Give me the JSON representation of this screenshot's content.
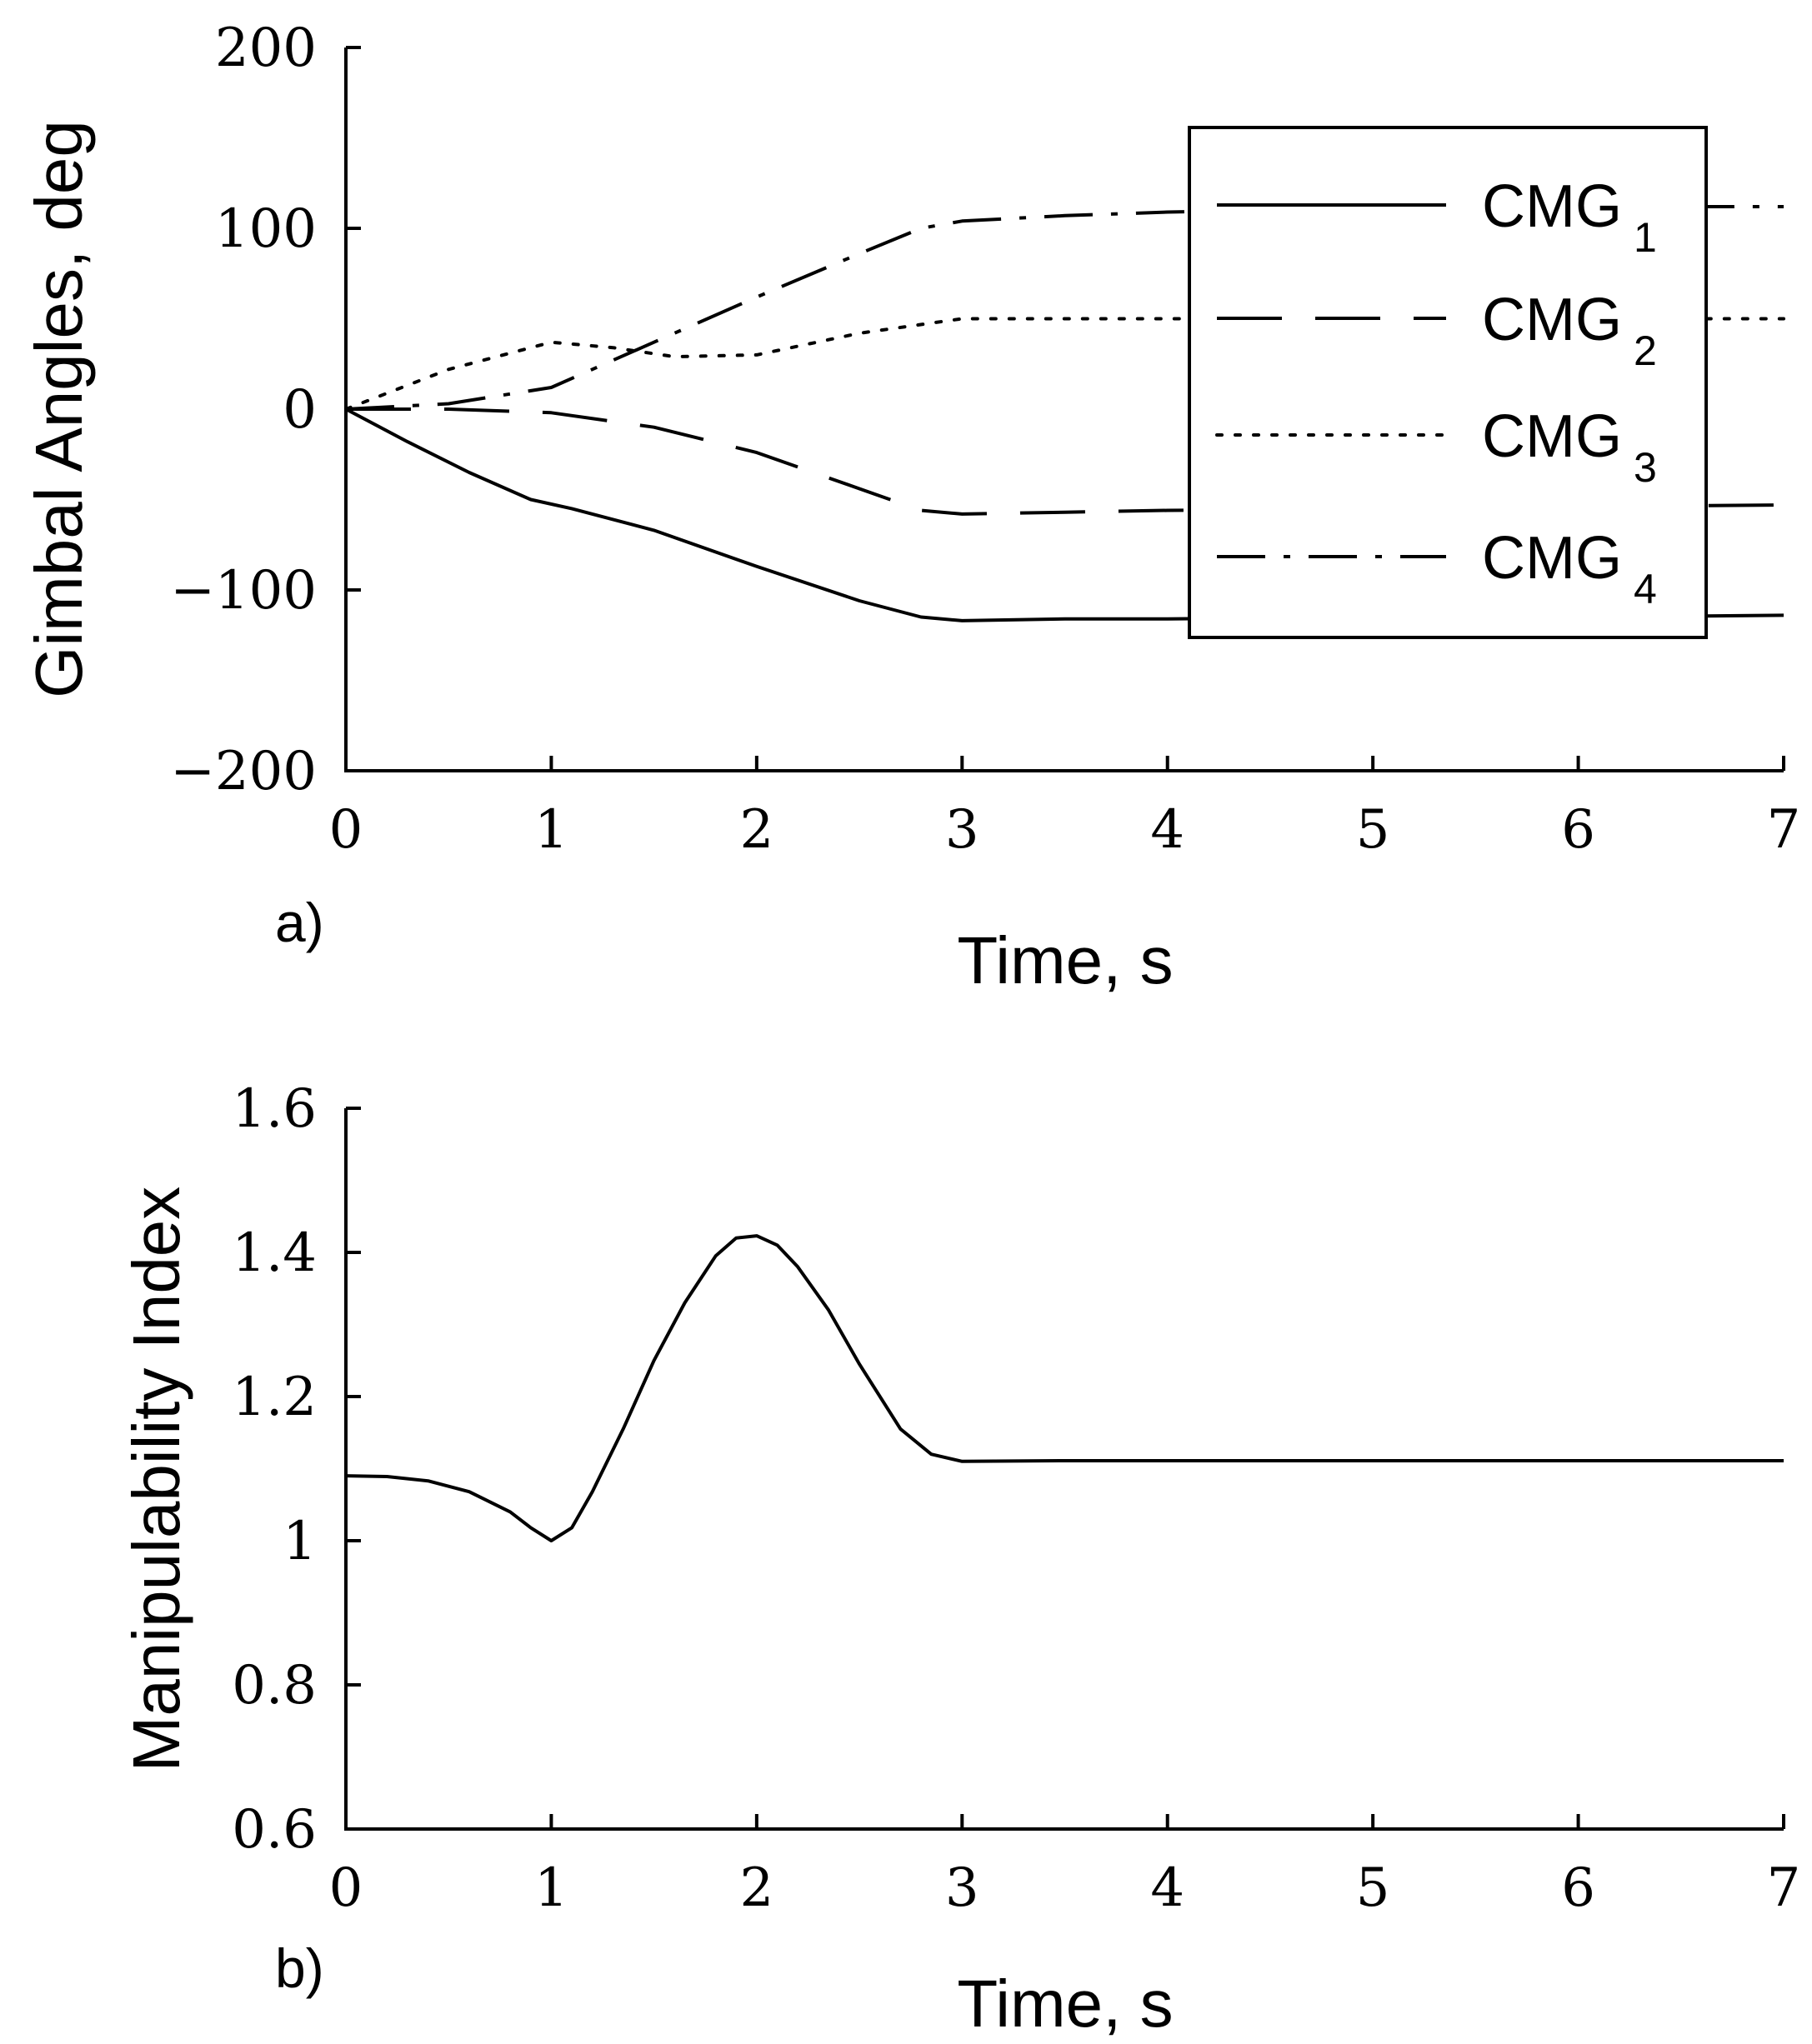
{
  "chart_data": [
    {
      "type": "line",
      "panel_label": "a)",
      "xlabel": "Time, s",
      "ylabel": "Gimbal Angles, deg",
      "xlim": [
        0,
        7
      ],
      "ylim": [
        -200,
        200
      ],
      "xticks": [
        0,
        1,
        2,
        3,
        4,
        5,
        6,
        7
      ],
      "yticks": [
        -200,
        -100,
        0,
        100,
        200
      ],
      "ytick_labels": [
        "−200",
        "−100",
        "0",
        "100",
        "200"
      ],
      "legend_position": "top-right",
      "series": [
        {
          "name": "CMG",
          "subscript": "1",
          "style": "solid",
          "x": [
            0,
            0.3,
            0.6,
            0.9,
            1.1,
            1.5,
            2.0,
            2.5,
            2.8,
            3.0,
            3.5,
            4.0,
            4.5,
            5.0,
            5.5,
            6.0,
            6.5,
            7.0
          ],
          "y": [
            0,
            -18,
            -35,
            -50,
            -55,
            -67,
            -87,
            -106,
            -115,
            -117,
            -116,
            -116,
            -115.5,
            -115.5,
            -115,
            -115,
            -114.5,
            -114
          ]
        },
        {
          "name": "CMG",
          "subscript": "2",
          "style": "dashed",
          "x": [
            0,
            0.5,
            1.0,
            1.5,
            2.0,
            2.5,
            2.8,
            3.0,
            3.5,
            4.0,
            4.5,
            5.0,
            5.5,
            6.0,
            6.5,
            7.0
          ],
          "y": [
            0,
            0,
            -2,
            -10,
            -24,
            -44,
            -56,
            -58,
            -57,
            -56,
            -55.5,
            -55,
            -54.5,
            -54,
            -53.5,
            -53
          ]
        },
        {
          "name": "CMG",
          "subscript": "3",
          "style": "dotted",
          "x": [
            0,
            0.5,
            1.0,
            1.3,
            1.6,
            2.0,
            2.5,
            3.0,
            3.5,
            4.0,
            4.5,
            5.0,
            5.5,
            6.0,
            6.5,
            7.0
          ],
          "y": [
            0,
            22,
            37,
            34,
            29,
            30,
            42,
            50,
            50,
            50,
            50,
            50,
            50,
            50,
            50,
            50
          ]
        },
        {
          "name": "CMG",
          "subscript": "4",
          "style": "dashdot",
          "x": [
            0,
            0.5,
            1.0,
            1.5,
            2.0,
            2.5,
            2.8,
            3.0,
            3.5,
            4.0,
            4.5,
            5.0,
            5.5,
            6.0,
            6.5,
            7.0
          ],
          "y": [
            0,
            3,
            12,
            37,
            62,
            86,
            100,
            104,
            107,
            109,
            110,
            110.5,
            111,
            111.5,
            112,
            112
          ]
        }
      ]
    },
    {
      "type": "line",
      "panel_label": "b)",
      "xlabel": "Time, s",
      "ylabel": "Manipulability Index",
      "xlim": [
        0,
        7
      ],
      "ylim": [
        0.6,
        1.6
      ],
      "xticks": [
        0,
        1,
        2,
        3,
        4,
        5,
        6,
        7
      ],
      "yticks": [
        0.6,
        0.8,
        1.0,
        1.2,
        1.4,
        1.6
      ],
      "ytick_labels": [
        "0.6",
        "0.8",
        "1",
        "1.2",
        "1.4",
        "1.6"
      ],
      "series": [
        {
          "name": "Manipulability Index",
          "style": "solid",
          "x": [
            0,
            0.2,
            0.4,
            0.6,
            0.8,
            0.9,
            1.0,
            1.1,
            1.2,
            1.35,
            1.5,
            1.65,
            1.8,
            1.9,
            2.0,
            2.1,
            2.2,
            2.35,
            2.5,
            2.7,
            2.85,
            3.0,
            3.5,
            4.0,
            5.0,
            6.0,
            7.0
          ],
          "y": [
            1.09,
            1.089,
            1.083,
            1.068,
            1.04,
            1.018,
            1.0,
            1.018,
            1.068,
            1.155,
            1.25,
            1.33,
            1.395,
            1.42,
            1.423,
            1.41,
            1.38,
            1.32,
            1.245,
            1.155,
            1.12,
            1.11,
            1.111,
            1.111,
            1.111,
            1.111,
            1.111
          ]
        }
      ]
    }
  ]
}
